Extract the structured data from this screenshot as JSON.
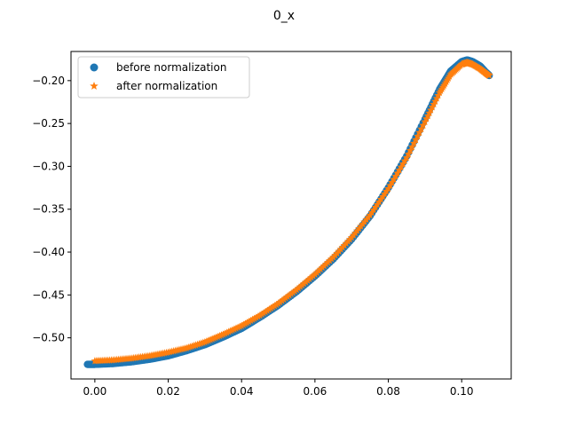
{
  "chart_data": {
    "type": "scatter",
    "title": "0_x",
    "xlabel": "",
    "ylabel": "",
    "xlim": [
      -0.0065,
      0.1135
    ],
    "ylim": [
      -0.548,
      -0.166
    ],
    "xticks": [
      0.0,
      0.02,
      0.04,
      0.06,
      0.08,
      0.1
    ],
    "xtick_labels": [
      "0.00",
      "0.02",
      "0.04",
      "0.06",
      "0.08",
      "0.10"
    ],
    "yticks": [
      -0.5,
      -0.45,
      -0.4,
      -0.35,
      -0.3,
      -0.25,
      -0.2
    ],
    "ytick_labels": [
      "−0.50",
      "−0.45",
      "−0.40",
      "−0.35",
      "−0.30",
      "−0.25",
      "−0.20"
    ],
    "grid": false,
    "legend_position": "top-left",
    "series": [
      {
        "name": "before normalization",
        "marker": "circle",
        "color": "#1f77b4",
        "x": [
          -0.002,
          0.0,
          0.005,
          0.01,
          0.015,
          0.02,
          0.025,
          0.03,
          0.035,
          0.04,
          0.045,
          0.05,
          0.055,
          0.06,
          0.065,
          0.07,
          0.075,
          0.08,
          0.085,
          0.09,
          0.094,
          0.097,
          0.1,
          0.1015,
          0.103,
          0.105,
          0.1065,
          0.1075
        ],
        "y": [
          -0.531,
          -0.531,
          -0.53,
          -0.528,
          -0.525,
          -0.521,
          -0.515,
          -0.508,
          -0.499,
          -0.489,
          -0.476,
          -0.462,
          -0.446,
          -0.428,
          -0.408,
          -0.385,
          -0.358,
          -0.325,
          -0.288,
          -0.245,
          -0.21,
          -0.189,
          -0.178,
          -0.176,
          -0.178,
          -0.183,
          -0.19,
          -0.194
        ]
      },
      {
        "name": "after normalization",
        "marker": "star",
        "color": "#ff7f0e",
        "x": [
          0.0,
          0.005,
          0.01,
          0.015,
          0.02,
          0.025,
          0.03,
          0.035,
          0.04,
          0.045,
          0.05,
          0.055,
          0.06,
          0.065,
          0.07,
          0.075,
          0.08,
          0.085,
          0.09,
          0.094,
          0.097,
          0.1,
          0.1015,
          0.103,
          0.105,
          0.1065,
          0.1075
        ],
        "y": [
          -0.527,
          -0.526,
          -0.524,
          -0.521,
          -0.517,
          -0.512,
          -0.505,
          -0.496,
          -0.486,
          -0.474,
          -0.46,
          -0.444,
          -0.426,
          -0.406,
          -0.383,
          -0.357,
          -0.326,
          -0.29,
          -0.248,
          -0.214,
          -0.193,
          -0.181,
          -0.179,
          -0.181,
          -0.186,
          -0.191,
          -0.194
        ]
      }
    ]
  }
}
